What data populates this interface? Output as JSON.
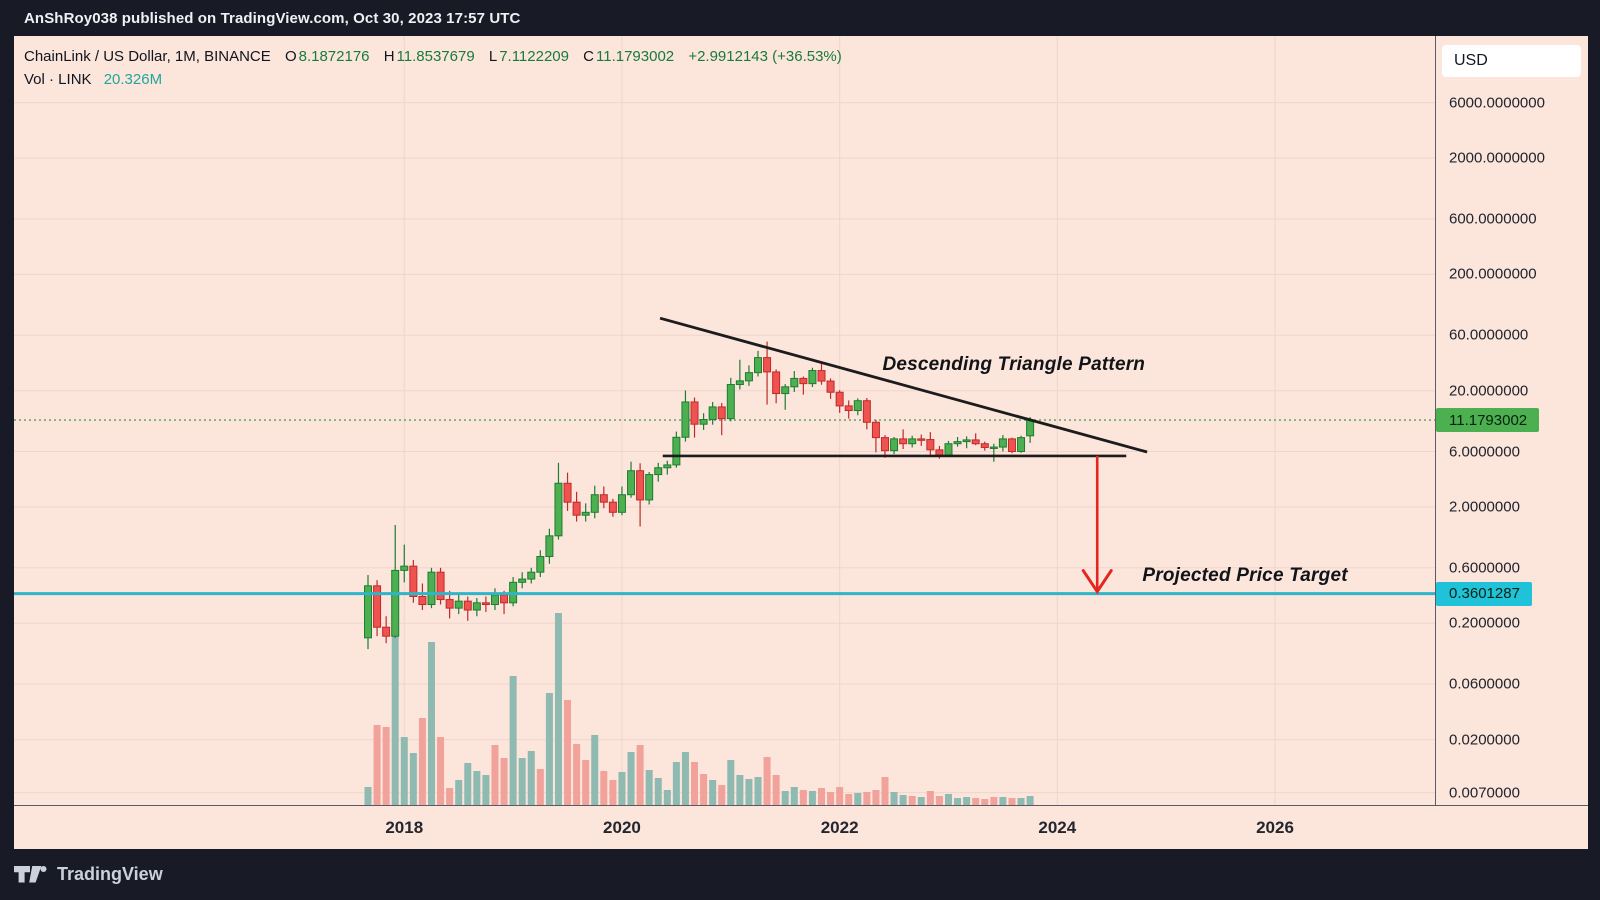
{
  "attribution": "AnShRoy038 published on TradingView.com, Oct 30, 2023 17:57 UTC",
  "header": {
    "symbol": "ChainLink / US Dollar, 1M, BINANCE",
    "ohlc": {
      "o_label": "O",
      "o": "8.1872176",
      "h_label": "H",
      "h": "11.8537679",
      "l_label": "L",
      "l": "7.1122209",
      "c_label": "C",
      "c": "11.1793002",
      "change": "+2.9912143 (+36.53%)"
    },
    "volume_row": {
      "label": "Vol · LINK",
      "value": "20.326M"
    }
  },
  "price_axis": {
    "currency": "USD",
    "last_price_badge": "11.1793002",
    "target_badge": "0.3601287"
  },
  "annotations": {
    "triangle_label": "Descending Triangle Pattern",
    "target_label": "Projected Price Target"
  },
  "footer": {
    "brand": "TradingView"
  },
  "colors": {
    "bg_dark": "#181b26",
    "chart_bg": "#fce5db",
    "grid": "#f1d5cc",
    "candle_up": "#4caf50",
    "candle_up_border": "#1e7c33",
    "candle_down": "#ef5350",
    "candle_down_border": "#bf2a2a",
    "vol_up": "#8ebab1",
    "vol_down": "#f1a29b",
    "trend_line": "#1c1c1c",
    "target_line": "#2fb5c9",
    "last_price_line": "#69a876",
    "arrow": "#e4261f",
    "badge_last": "#4caf50",
    "badge_target": "#1fc2d8"
  },
  "chart_data": {
    "type": "candlestick",
    "symbol": "ChainLink / US Dollar",
    "exchange": "BINANCE",
    "interval": "1M",
    "price_scale": "logarithmic",
    "start_month": "2017-09",
    "last_price": 11.1793002,
    "target_price": 0.3601287,
    "price_ticks": [
      {
        "v": 6000,
        "label": "6000.0000000"
      },
      {
        "v": 2000,
        "label": "2000.0000000"
      },
      {
        "v": 600,
        "label": "600.0000000"
      },
      {
        "v": 200,
        "label": "200.0000000"
      },
      {
        "v": 60,
        "label": "60.0000000"
      },
      {
        "v": 20,
        "label": "20.0000000"
      },
      {
        "v": 6,
        "label": "6.0000000"
      },
      {
        "v": 2,
        "label": "2.0000000"
      },
      {
        "v": 0.6,
        "label": "0.6000000"
      },
      {
        "v": 0.2,
        "label": "0.2000000"
      },
      {
        "v": 0.06,
        "label": "0.0600000"
      },
      {
        "v": 0.02,
        "label": "0.0200000"
      },
      {
        "v": 0.007,
        "label": "0.0070000"
      }
    ],
    "year_marks": [
      {
        "text": "2018",
        "index": 4
      },
      {
        "text": "2020",
        "index": 28
      },
      {
        "text": "2022",
        "index": 52
      },
      {
        "text": "2024",
        "index": 76
      },
      {
        "text": "2026",
        "index": 100
      }
    ],
    "ohlc": [
      [
        0.15,
        0.52,
        0.12,
        0.42
      ],
      [
        0.42,
        0.47,
        0.155,
        0.185
      ],
      [
        0.185,
        0.23,
        0.135,
        0.155
      ],
      [
        0.155,
        1.4,
        0.15,
        0.57
      ],
      [
        0.57,
        0.95,
        0.45,
        0.62
      ],
      [
        0.62,
        0.7,
        0.3,
        0.34
      ],
      [
        0.34,
        0.44,
        0.26,
        0.29
      ],
      [
        0.29,
        0.6,
        0.27,
        0.55
      ],
      [
        0.55,
        0.6,
        0.29,
        0.32
      ],
      [
        0.32,
        0.38,
        0.22,
        0.27
      ],
      [
        0.27,
        0.36,
        0.24,
        0.31
      ],
      [
        0.31,
        0.34,
        0.21,
        0.26
      ],
      [
        0.26,
        0.33,
        0.23,
        0.3
      ],
      [
        0.3,
        0.34,
        0.25,
        0.29
      ],
      [
        0.29,
        0.4,
        0.26,
        0.35
      ],
      [
        0.35,
        0.38,
        0.24,
        0.3
      ],
      [
        0.3,
        0.5,
        0.28,
        0.45
      ],
      [
        0.45,
        0.55,
        0.4,
        0.48
      ],
      [
        0.48,
        0.6,
        0.44,
        0.55
      ],
      [
        0.55,
        0.85,
        0.5,
        0.75
      ],
      [
        0.75,
        1.3,
        0.65,
        1.13
      ],
      [
        1.13,
        4.8,
        1.05,
        3.2
      ],
      [
        3.2,
        3.95,
        1.85,
        2.2
      ],
      [
        2.2,
        2.7,
        1.5,
        1.7
      ],
      [
        1.7,
        2.15,
        1.5,
        1.8
      ],
      [
        1.8,
        3.05,
        1.6,
        2.55
      ],
      [
        2.55,
        3.0,
        1.95,
        2.2
      ],
      [
        2.2,
        2.35,
        1.65,
        1.8
      ],
      [
        1.8,
        3.0,
        1.7,
        2.55
      ],
      [
        2.55,
        4.9,
        2.4,
        4.1
      ],
      [
        4.1,
        4.75,
        1.36,
        2.3
      ],
      [
        2.3,
        4.0,
        2.1,
        3.8
      ],
      [
        3.8,
        4.8,
        3.3,
        4.35
      ],
      [
        4.35,
        5.0,
        3.8,
        4.6
      ],
      [
        4.6,
        8.9,
        4.35,
        7.95
      ],
      [
        7.95,
        20.1,
        7.3,
        16.0
      ],
      [
        16.0,
        17.5,
        7.9,
        10.3
      ],
      [
        10.3,
        12.8,
        9.2,
        11.3
      ],
      [
        11.3,
        16.0,
        10.2,
        14.5
      ],
      [
        14.5,
        15.7,
        8.3,
        11.5
      ],
      [
        11.5,
        25.8,
        10.9,
        22.6
      ],
      [
        22.6,
        36.9,
        20.5,
        24.3
      ],
      [
        24.3,
        33.0,
        22.0,
        28.6
      ],
      [
        28.6,
        44.0,
        26.5,
        38.5
      ],
      [
        38.5,
        52.9,
        15.2,
        29.0
      ],
      [
        29.0,
        30.5,
        15.6,
        18.9
      ],
      [
        18.9,
        22.8,
        13.7,
        21.6
      ],
      [
        21.6,
        29.5,
        19.5,
        25.5
      ],
      [
        25.5,
        26.5,
        18.5,
        23.0
      ],
      [
        23.0,
        31.5,
        21.5,
        29.8
      ],
      [
        29.8,
        35.0,
        22.5,
        24.2
      ],
      [
        24.2,
        25.5,
        17.0,
        19.4
      ],
      [
        19.4,
        20.2,
        12.9,
        14.8
      ],
      [
        14.8,
        16.5,
        11.5,
        13.5
      ],
      [
        13.5,
        17.2,
        12.3,
        16.4
      ],
      [
        16.4,
        17.3,
        9.3,
        10.7
      ],
      [
        10.7,
        11.2,
        5.9,
        7.9
      ],
      [
        7.9,
        8.3,
        5.3,
        6.1
      ],
      [
        6.1,
        8.0,
        5.7,
        7.7
      ],
      [
        7.7,
        9.3,
        6.3,
        7.0
      ],
      [
        7.0,
        8.2,
        6.5,
        7.7
      ],
      [
        7.7,
        8.4,
        6.7,
        7.6
      ],
      [
        7.6,
        8.8,
        5.4,
        6.2
      ],
      [
        6.2,
        6.7,
        5.2,
        5.6
      ],
      [
        5.6,
        7.4,
        5.4,
        7.0
      ],
      [
        7.0,
        8.0,
        6.6,
        7.3
      ],
      [
        7.3,
        8.1,
        6.4,
        7.55
      ],
      [
        7.55,
        8.6,
        6.8,
        7.0
      ],
      [
        7.0,
        7.3,
        6.1,
        6.5
      ],
      [
        6.5,
        7.0,
        4.9,
        6.55
      ],
      [
        6.55,
        8.3,
        6.0,
        7.7
      ],
      [
        7.7,
        7.9,
        5.8,
        6.0
      ],
      [
        6.0,
        8.2,
        5.85,
        7.9
      ],
      [
        8.1872176,
        11.8537679,
        7.1122209,
        11.1793002
      ]
    ],
    "volume": [
      [
        18,
        "up"
      ],
      [
        80,
        "down"
      ],
      [
        78,
        "down"
      ],
      [
        172,
        "up"
      ],
      [
        68,
        "up"
      ],
      [
        52,
        "up"
      ],
      [
        87,
        "down"
      ],
      [
        163,
        "up"
      ],
      [
        68,
        "down"
      ],
      [
        17,
        "down"
      ],
      [
        25,
        "up"
      ],
      [
        42,
        "up"
      ],
      [
        34,
        "up"
      ],
      [
        30,
        "up"
      ],
      [
        60,
        "down"
      ],
      [
        47,
        "down"
      ],
      [
        129,
        "up"
      ],
      [
        47,
        "up"
      ],
      [
        54,
        "up"
      ],
      [
        36,
        "down"
      ],
      [
        112,
        "up"
      ],
      [
        192,
        "up"
      ],
      [
        105,
        "down"
      ],
      [
        61,
        "down"
      ],
      [
        45,
        "down"
      ],
      [
        70,
        "up"
      ],
      [
        34,
        "down"
      ],
      [
        25,
        "down"
      ],
      [
        33,
        "up"
      ],
      [
        53,
        "up"
      ],
      [
        60,
        "down"
      ],
      [
        35,
        "up"
      ],
      [
        27,
        "up"
      ],
      [
        15,
        "up"
      ],
      [
        43,
        "up"
      ],
      [
        53,
        "up"
      ],
      [
        43,
        "down"
      ],
      [
        31,
        "down"
      ],
      [
        25,
        "up"
      ],
      [
        20,
        "down"
      ],
      [
        45,
        "up"
      ],
      [
        30,
        "up"
      ],
      [
        26,
        "up"
      ],
      [
        28,
        "up"
      ],
      [
        48,
        "down"
      ],
      [
        30,
        "down"
      ],
      [
        14,
        "up"
      ],
      [
        18,
        "up"
      ],
      [
        15,
        "down"
      ],
      [
        14,
        "up"
      ],
      [
        17,
        "down"
      ],
      [
        13,
        "down"
      ],
      [
        18,
        "down"
      ],
      [
        11,
        "down"
      ],
      [
        12,
        "up"
      ],
      [
        13,
        "down"
      ],
      [
        15,
        "down"
      ],
      [
        28,
        "down"
      ],
      [
        13,
        "up"
      ],
      [
        10,
        "up"
      ],
      [
        9,
        "down"
      ],
      [
        8,
        "up"
      ],
      [
        14,
        "down"
      ],
      [
        9,
        "down"
      ],
      [
        11,
        "up"
      ],
      [
        7,
        "up"
      ],
      [
        8,
        "up"
      ],
      [
        7,
        "down"
      ],
      [
        6,
        "down"
      ],
      [
        8,
        "down"
      ],
      [
        8,
        "up"
      ],
      [
        7,
        "down"
      ],
      [
        7,
        "up"
      ],
      [
        9,
        "up"
      ]
    ],
    "drawings": {
      "support_line": {
        "i1": 32.5,
        "i2": 83.6,
        "price": 5.5
      },
      "descending_trendline": {
        "i1": 32.2,
        "p1": 84,
        "i2": 85.9,
        "p2": 5.94
      },
      "arrow": {
        "i": 80.4,
        "from_price": 5.5,
        "to_price": 0.3601287
      },
      "triangle_label_pos": {
        "i": 71.2,
        "p": 33.5
      },
      "target_label_pos": {
        "i": 96.7,
        "p": 0.51
      }
    }
  }
}
